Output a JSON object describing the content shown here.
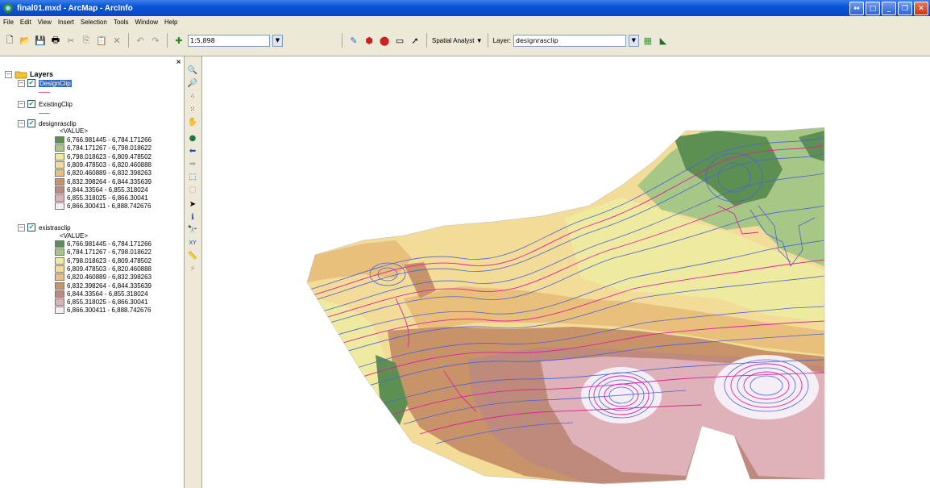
{
  "window": {
    "title": "final01.mxd - ArcMap - ArcInfo"
  },
  "menu": [
    "File",
    "Edit",
    "View",
    "Insert",
    "Selection",
    "Tools",
    "Window",
    "Help"
  ],
  "toolbar": {
    "scale_value": "1:5,898",
    "spatial_analyst_label": "Spatial Analyst ▼",
    "layer_label": "Layer:",
    "layer_value": "designrasclip",
    "icons": [
      "new-icon",
      "open-icon",
      "save-icon",
      "print-icon",
      "cut-icon",
      "copy-icon",
      "paste-icon",
      "delete-icon",
      "undo-icon",
      "redo-icon",
      "add-data-icon",
      "editor-icon",
      "arctoolbox-icon",
      "arccatalog-icon",
      "command-line-icon",
      "whats-this-icon",
      "contour-icon",
      "histogram-icon"
    ]
  },
  "toc": {
    "root_label": "Layers",
    "layers": [
      {
        "name": "DesignClip",
        "checked": true,
        "selected": true,
        "symbol": "line",
        "color": "#e050a0"
      },
      {
        "name": "ExistingClip",
        "checked": true,
        "selected": false,
        "symbol": "line",
        "color": "#6a8ed0"
      },
      {
        "name": "designrasclip",
        "checked": true,
        "selected": false,
        "symbol": "raster"
      },
      {
        "name": "existrasclip",
        "checked": true,
        "selected": false,
        "symbol": "raster"
      }
    ],
    "value_label": "<VALUE>",
    "classes": [
      {
        "label": "6,766.981445 - 6,784.171266",
        "color": "#5e8f52"
      },
      {
        "label": "6,784.171267 - 6,798.018622",
        "color": "#a6c785"
      },
      {
        "label": "6,798.018623 - 6,809.478502",
        "color": "#eeea9f"
      },
      {
        "label": "6,809.478503 - 6,820.460888",
        "color": "#f2dc98"
      },
      {
        "label": "6,820.460889 - 6,832.398263",
        "color": "#e8c07c"
      },
      {
        "label": "6,832.398264 - 6,844.335639",
        "color": "#c9936a"
      },
      {
        "label": "6,844.33564 - 6,855.318024",
        "color": "#be8a7c"
      },
      {
        "label": "6,855.318025 - 6,866.30041",
        "color": "#dfb1b8"
      },
      {
        "label": "6,866.300411 - 6,888.742676",
        "color": "#f5eef6"
      }
    ]
  },
  "tools": [
    "zoom-in-icon",
    "zoom-out-icon",
    "fixed-zoom-in-icon",
    "fixed-zoom-out-icon",
    "pan-icon",
    "full-extent-icon",
    "back-icon",
    "forward-icon",
    "select-features-icon",
    "clear-selection-icon",
    "select-elements-icon",
    "identify-icon",
    "find-icon",
    "go-to-xy-icon",
    "measure-icon",
    "hyperlink-icon"
  ],
  "map": {
    "colors": {
      "green_dark": "#5e8f52",
      "green_light": "#a6c785",
      "yellow": "#eeea9f",
      "tan": "#f2dc98",
      "orange_tan": "#e8c07c",
      "brown": "#c9936a",
      "mauve": "#be8a7c",
      "pink": "#dfb1b8",
      "white_pink": "#f5eef6",
      "design_contour": "#e0209a",
      "existing_contour": "#4a62d8"
    }
  }
}
